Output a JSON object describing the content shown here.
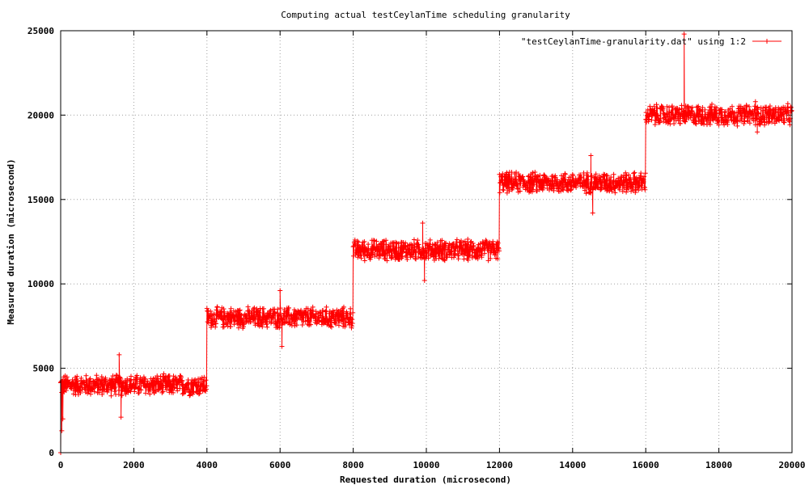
{
  "chart_data": {
    "type": "line",
    "title": "Computing actual testCeylanTime scheduling granularity",
    "xlabel": "Requested duration (microsecond)",
    "ylabel": "Measured duration (microsecond)",
    "xlim": [
      0,
      20000
    ],
    "ylim": [
      0,
      25000
    ],
    "x_ticks": [
      "0",
      "2000",
      "4000",
      "6000",
      "8000",
      "10000",
      "12000",
      "14000",
      "16000",
      "18000",
      "20000"
    ],
    "y_ticks": [
      "0",
      "5000",
      "10000",
      "15000",
      "20000",
      "25000"
    ],
    "grid": true,
    "legend_position": "top-right",
    "point_marker": "+",
    "colors": {
      "series": "#ff0000",
      "grid": "#a0a0a0",
      "axes": "#000000"
    },
    "series": [
      {
        "name": "\"testCeylanTime-granularity.dat\" using 1:2",
        "steps": [
          {
            "x_start": 0,
            "x_end": 4000,
            "y": 4000,
            "low": 3300,
            "high": 4700
          },
          {
            "x_start": 4000,
            "x_end": 8000,
            "y": 8000,
            "low": 7300,
            "high": 8700
          },
          {
            "x_start": 8000,
            "x_end": 12000,
            "y": 12000,
            "low": 11300,
            "high": 12700
          },
          {
            "x_start": 12000,
            "x_end": 16000,
            "y": 16000,
            "low": 15300,
            "high": 16700
          },
          {
            "x_start": 16000,
            "x_end": 20000,
            "y": 20000,
            "low": 19300,
            "high": 20700
          }
        ],
        "outliers": [
          {
            "x": 0,
            "y": 0
          },
          {
            "x": 30,
            "y": 1300
          },
          {
            "x": 60,
            "y": 2000
          },
          {
            "x": 1600,
            "y": 5800
          },
          {
            "x": 1650,
            "y": 2100
          },
          {
            "x": 6000,
            "y": 9600
          },
          {
            "x": 6050,
            "y": 6300
          },
          {
            "x": 9900,
            "y": 13600
          },
          {
            "x": 9950,
            "y": 10200
          },
          {
            "x": 14500,
            "y": 17600
          },
          {
            "x": 14550,
            "y": 14200
          },
          {
            "x": 17050,
            "y": 24800
          },
          {
            "x": 19000,
            "y": 20800
          },
          {
            "x": 19050,
            "y": 19000
          }
        ]
      }
    ]
  }
}
